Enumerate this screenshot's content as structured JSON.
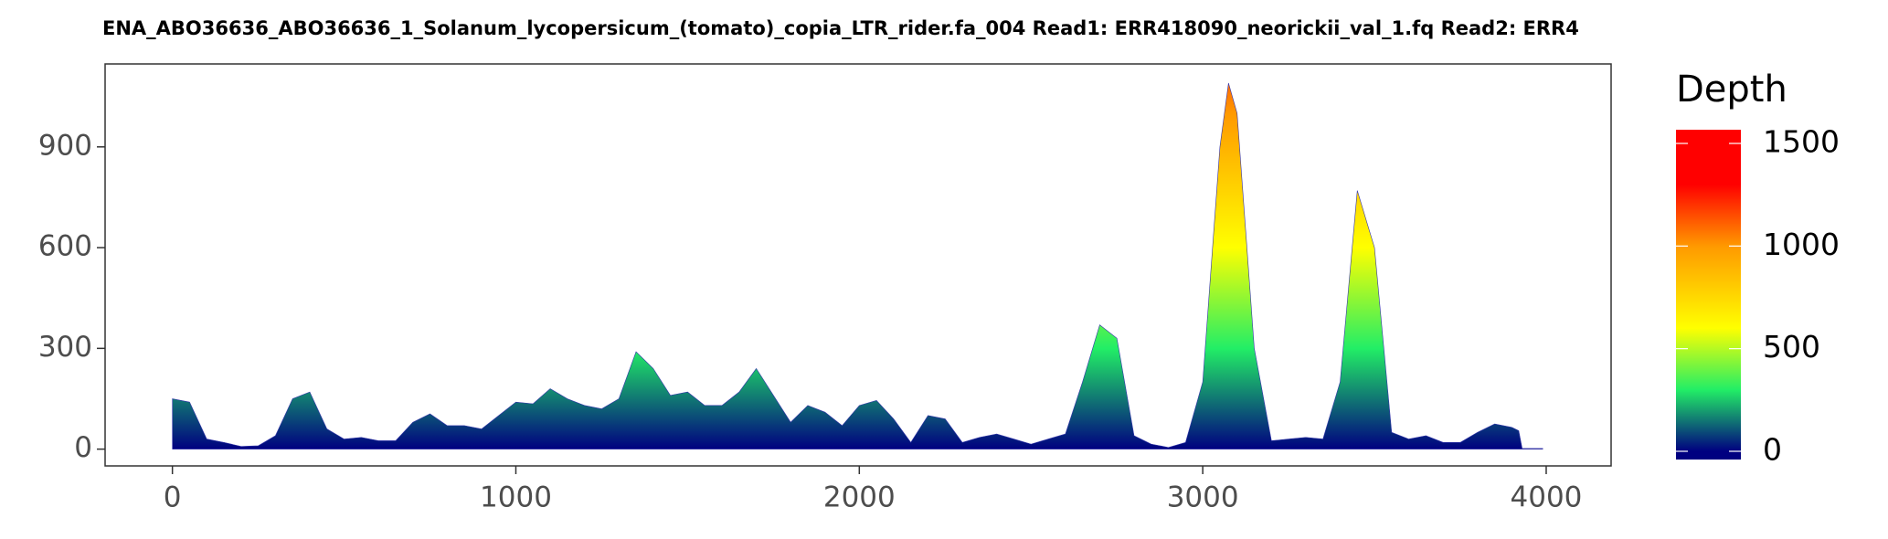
{
  "chart_data": {
    "type": "area",
    "title": "ENA_ABO36636_ABO36636_1_Solanum_lycopersicum_(tomato)_copia_LTR_rider.fa_004   Read1: ERR418090_neorickii_val_1.fq   Read2: ERR4",
    "x": [
      0,
      50,
      100,
      150,
      200,
      250,
      300,
      350,
      400,
      450,
      500,
      550,
      600,
      650,
      700,
      750,
      800,
      850,
      900,
      950,
      1000,
      1050,
      1100,
      1150,
      1200,
      1250,
      1300,
      1350,
      1400,
      1450,
      1500,
      1550,
      1600,
      1650,
      1700,
      1750,
      1800,
      1850,
      1900,
      1950,
      2000,
      2050,
      2100,
      2150,
      2200,
      2250,
      2300,
      2350,
      2400,
      2450,
      2500,
      2550,
      2600,
      2650,
      2700,
      2750,
      2800,
      2850,
      2900,
      2950,
      3000,
      3050,
      3075,
      3100,
      3150,
      3200,
      3250,
      3300,
      3350,
      3400,
      3450,
      3500,
      3550,
      3600,
      3650,
      3700,
      3750,
      3800,
      3850,
      3900,
      3920,
      3930,
      3990
    ],
    "series": [
      {
        "name": "Depth",
        "values": [
          150,
          140,
          30,
          20,
          8,
          10,
          40,
          150,
          170,
          60,
          30,
          35,
          25,
          25,
          80,
          105,
          70,
          70,
          60,
          100,
          140,
          135,
          180,
          150,
          130,
          120,
          150,
          290,
          240,
          160,
          170,
          130,
          130,
          170,
          240,
          160,
          80,
          130,
          110,
          70,
          130,
          145,
          90,
          20,
          100,
          90,
          20,
          35,
          45,
          30,
          15,
          30,
          45,
          200,
          370,
          330,
          40,
          15,
          5,
          20,
          200,
          900,
          1090,
          1000,
          300,
          25,
          30,
          35,
          30,
          200,
          770,
          600,
          50,
          30,
          40,
          20,
          20,
          50,
          75,
          65,
          55,
          2,
          2
        ]
      }
    ],
    "xlim": [
      -196,
      4189
    ],
    "ylim": [
      -50,
      1147
    ],
    "xticks": [
      0,
      1000,
      2000,
      3000,
      4000
    ],
    "yticks": [
      0,
      300,
      600,
      900
    ],
    "grid": false,
    "color_scale": {
      "title": "Depth",
      "lim": [
        0,
        1500
      ],
      "ticks": [
        0,
        500,
        1000,
        1500
      ],
      "stops": [
        [
          0,
          "#000080"
        ],
        [
          300,
          "#22ee66"
        ],
        [
          600,
          "#ffff00"
        ],
        [
          1000,
          "#ff9900"
        ],
        [
          1300,
          "#ff0000"
        ],
        [
          1500,
          "#ff0000"
        ]
      ]
    }
  }
}
